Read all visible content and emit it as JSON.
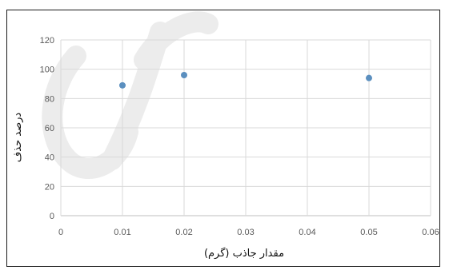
{
  "chart_data": {
    "type": "scatter",
    "title": "",
    "xlabel": "مقدار جاذب (گرم)",
    "ylabel": "درصد حذف",
    "xlim": [
      0,
      0.06
    ],
    "ylim": [
      0,
      120
    ],
    "xticks": [
      "0",
      "0.01",
      "0.02",
      "0.03",
      "0.04",
      "0.05",
      "0.06"
    ],
    "yticks": [
      "0",
      "20",
      "40",
      "60",
      "80",
      "100",
      "120"
    ],
    "grid": true,
    "legend": "none",
    "series": [
      {
        "color": "#5b8fbf",
        "x": [
          0.01,
          0.02,
          0.05
        ],
        "y": [
          89,
          96,
          94
        ]
      }
    ]
  }
}
